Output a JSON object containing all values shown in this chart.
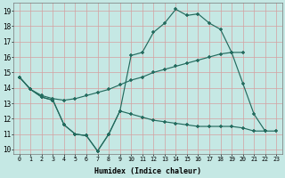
{
  "bg_color": "#c5e8e4",
  "grid_color": "#d4a0a0",
  "line_color": "#236b5e",
  "xlabel": "Humidex (Indice chaleur)",
  "xlim": [
    -0.5,
    23.5
  ],
  "ylim": [
    9.7,
    19.5
  ],
  "series_C_x": [
    0,
    1,
    2,
    3,
    4,
    5,
    6,
    7,
    8,
    9,
    10,
    11,
    12,
    13,
    14,
    15,
    16,
    17,
    18,
    19,
    20,
    21,
    22
  ],
  "series_C_y": [
    14.7,
    13.9,
    13.4,
    13.2,
    11.6,
    11.0,
    10.9,
    9.9,
    11.0,
    12.5,
    16.1,
    16.3,
    17.6,
    18.2,
    19.1,
    18.7,
    18.8,
    18.2,
    17.8,
    16.3,
    14.3,
    12.3,
    11.2
  ],
  "series_B_x": [
    0,
    1,
    2,
    3,
    4,
    5,
    6,
    7,
    8,
    9,
    10,
    11,
    12,
    13,
    14,
    15,
    16,
    17,
    18,
    19,
    20
  ],
  "series_B_y": [
    14.7,
    13.9,
    13.5,
    13.3,
    13.2,
    13.3,
    13.5,
    13.7,
    13.9,
    14.2,
    14.5,
    14.7,
    15.0,
    15.2,
    15.4,
    15.6,
    15.8,
    16.0,
    16.2,
    16.3,
    16.3
  ],
  "series_A_x": [
    0,
    1,
    2,
    3,
    4,
    5,
    6,
    7,
    8,
    9,
    10,
    11,
    12,
    13,
    14,
    15,
    16,
    17,
    18,
    19,
    20,
    21,
    22,
    23
  ],
  "series_A_y": [
    14.7,
    13.9,
    13.4,
    13.2,
    11.6,
    11.0,
    10.9,
    9.9,
    11.0,
    12.5,
    12.3,
    12.1,
    11.9,
    11.8,
    11.7,
    11.6,
    11.5,
    11.5,
    11.5,
    11.5,
    11.4,
    11.2,
    11.2,
    11.2
  ]
}
